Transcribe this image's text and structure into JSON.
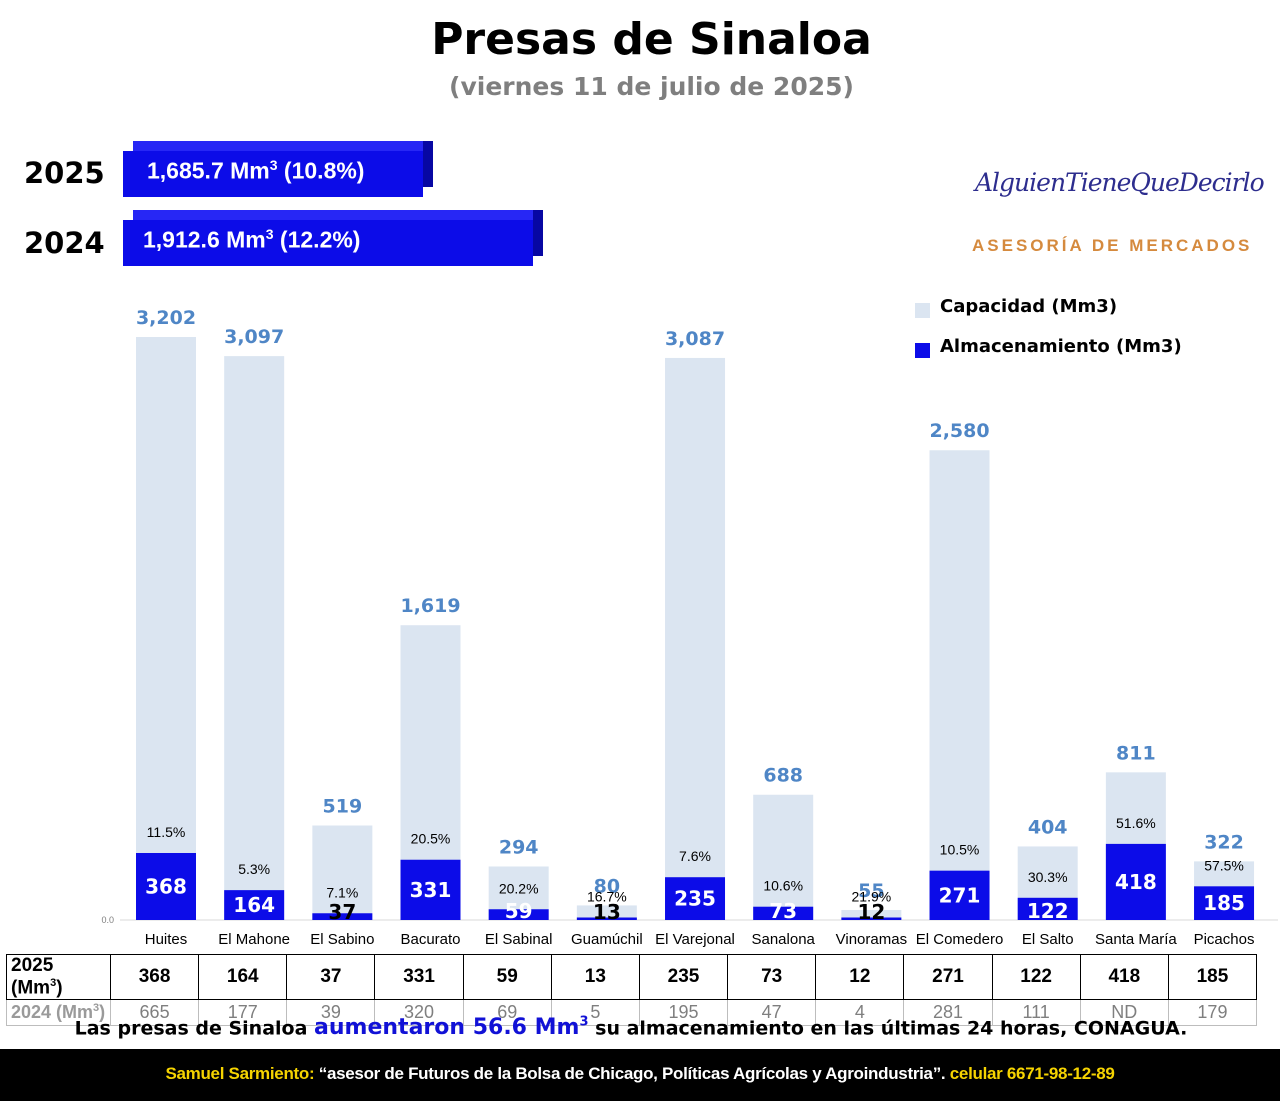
{
  "header": {
    "title": "Presas de Sinaloa",
    "subtitle": "(viernes 11 de julio de 2025)"
  },
  "totals": [
    {
      "year": "2025",
      "amount": "1,685.7 Mm",
      "exp": "3",
      "pct": " (10.8%)",
      "value": 1685.7
    },
    {
      "year": "2024",
      "amount": "1,912.6 Mm",
      "exp": "3",
      "pct": " (12.2%)",
      "value": 1912.6
    }
  ],
  "brand": {
    "signature": "AlguienTieneQueDecirlo",
    "subtitle": "ASESORÍA DE MERCADOS"
  },
  "chart_data": {
    "type": "bar",
    "categories": [
      "Huites",
      "El Mahone",
      "El Sabino",
      "Bacurato",
      "El Sabinal",
      "Guamúchil",
      "El Varejonal",
      "Sanalona",
      "Vinoramas",
      "El Comedero",
      "El Salto",
      "Santa María",
      "Picachos"
    ],
    "series": [
      {
        "name": "Capacidad (Mm3)",
        "color": "#dbe5f1",
        "values": [
          3202,
          3097,
          519,
          1619,
          294,
          80,
          3087,
          688,
          55,
          2580,
          404,
          811,
          322
        ],
        "labels": [
          "3,202",
          "3,097",
          "519",
          "1,619",
          "294",
          "80",
          "3,087",
          "688",
          "55",
          "2,580",
          "404",
          "811",
          "322"
        ]
      },
      {
        "name": "Almacenamiento (Mm3)",
        "color": "#0c0ce8",
        "values": [
          368,
          164,
          37,
          331,
          59,
          13,
          235,
          73,
          12,
          271,
          122,
          418,
          185
        ],
        "labels": [
          "368",
          "164",
          "37",
          "331",
          "59",
          "13",
          "235",
          "73",
          "12",
          "271",
          "122",
          "418",
          "185"
        ]
      }
    ],
    "percent_labels": [
      "11.5%",
      "5.3%",
      "7.1%",
      "20.5%",
      "20.2%",
      "16.7%",
      "7.6%",
      "10.6%",
      "21.9%",
      "10.5%",
      "30.3%",
      "51.6%",
      "57.5%"
    ],
    "axis_zero_label": "0.0",
    "ylim": [
      0,
      3202
    ],
    "legend_position": "top-right"
  },
  "table": {
    "row2025_label": "2025 (Mm",
    "row2024_label": "2024 (Mm",
    "label_exp": "3",
    "label_close": ")",
    "row2025": [
      "368",
      "164",
      "37",
      "331",
      "59",
      "13",
      "235",
      "73",
      "12",
      "271",
      "122",
      "418",
      "185"
    ],
    "row2024": [
      "665",
      "177",
      "39",
      "320",
      "69",
      "5",
      "195",
      "47",
      "4",
      "281",
      "111",
      "ND",
      "179"
    ]
  },
  "note": {
    "pre": "Las presas de Sinaloa ",
    "highlight": "aumentaron 56.6 Mm",
    "exp": "3",
    "post": " su almacenamiento en las últimas 24 horas, CONAGUA."
  },
  "footer": {
    "name": "Samuel Sarmiento:",
    "quote": " “asesor de Futuros de la Bolsa de Chicago, Políticas Agrícolas y Agroindustria”.",
    "contact": " celular 6671-98-12-89"
  }
}
